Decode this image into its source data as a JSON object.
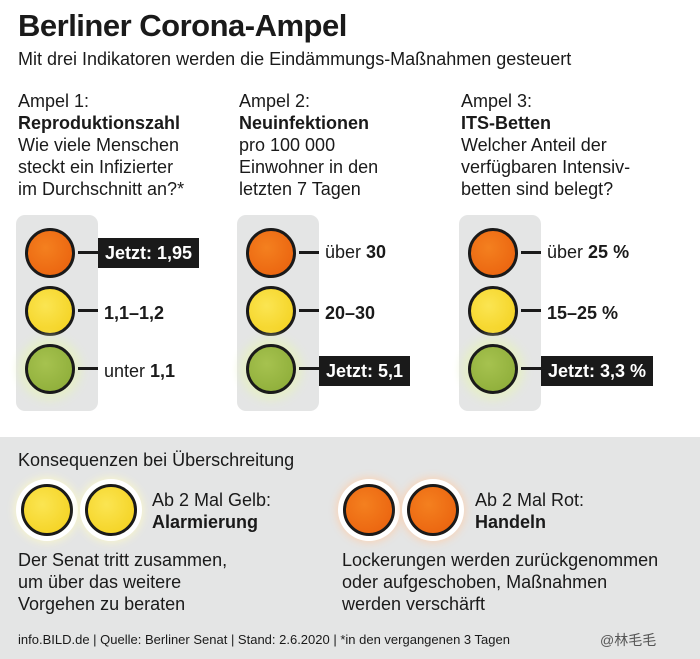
{
  "title": "Berliner Corona-Ampel",
  "subtitle": "Mit drei Indikatoren werden die Eindämmungs-Maßnahmen gesteuert",
  "ampeln": [
    {
      "kicker": "Ampel 1:",
      "name": "Reproduktionszahl",
      "description": "Wie viele Menschen\nsteckt ein Infizierter\nim Durchschnitt an?*",
      "red_label": "Jetzt: 1,95",
      "yellow_label": "1,1–1,2",
      "green_prefix": "unter",
      "green_value": "1,1",
      "current_level": "red"
    },
    {
      "kicker": "Ampel 2:",
      "name": "Neuinfektionen",
      "description": "pro 100 000\nEinwohner in den\nletzten 7 Tagen",
      "red_prefix": "über",
      "red_value": "30",
      "yellow_label": "20–30",
      "green_label": "Jetzt: 5,1",
      "current_level": "green"
    },
    {
      "kicker": "Ampel 3:",
      "name": "ITS-Betten",
      "description": "Welcher Anteil der\nverfügbaren Intensiv-\nbetten sind belegt?",
      "red_prefix": "über",
      "red_value": "25 %",
      "yellow_label": "15–25 %",
      "green_label": "Jetzt: 3,3 %",
      "current_level": "green"
    }
  ],
  "consequences": {
    "title": "Konsequenzen bei Überschreitung",
    "yellow": {
      "rule": "Ab 2 Mal Gelb:",
      "action": "Alarmierung",
      "text": "Der Senat tritt zusammen,\num über das weitere\nVorgehen zu beraten"
    },
    "red": {
      "rule": "Ab 2 Mal Rot:",
      "action": "Handeln",
      "text": "Lockerungen werden zurückgenommen\noder aufgeschoben, Maßnahmen\nwerden verschärft"
    }
  },
  "footer": "info.BILD.de | Quelle: Berliner Senat | Stand: 2.6.2020 | *in den vergangenen 3 Tagen",
  "credit": "@林毛毛",
  "colors": {
    "red_lamp": "#ec6610",
    "yellow_lamp": "#f6d727",
    "green_lamp": "#94b23f",
    "panel": "#e4e5e5",
    "tag": "#1a1a1a"
  }
}
